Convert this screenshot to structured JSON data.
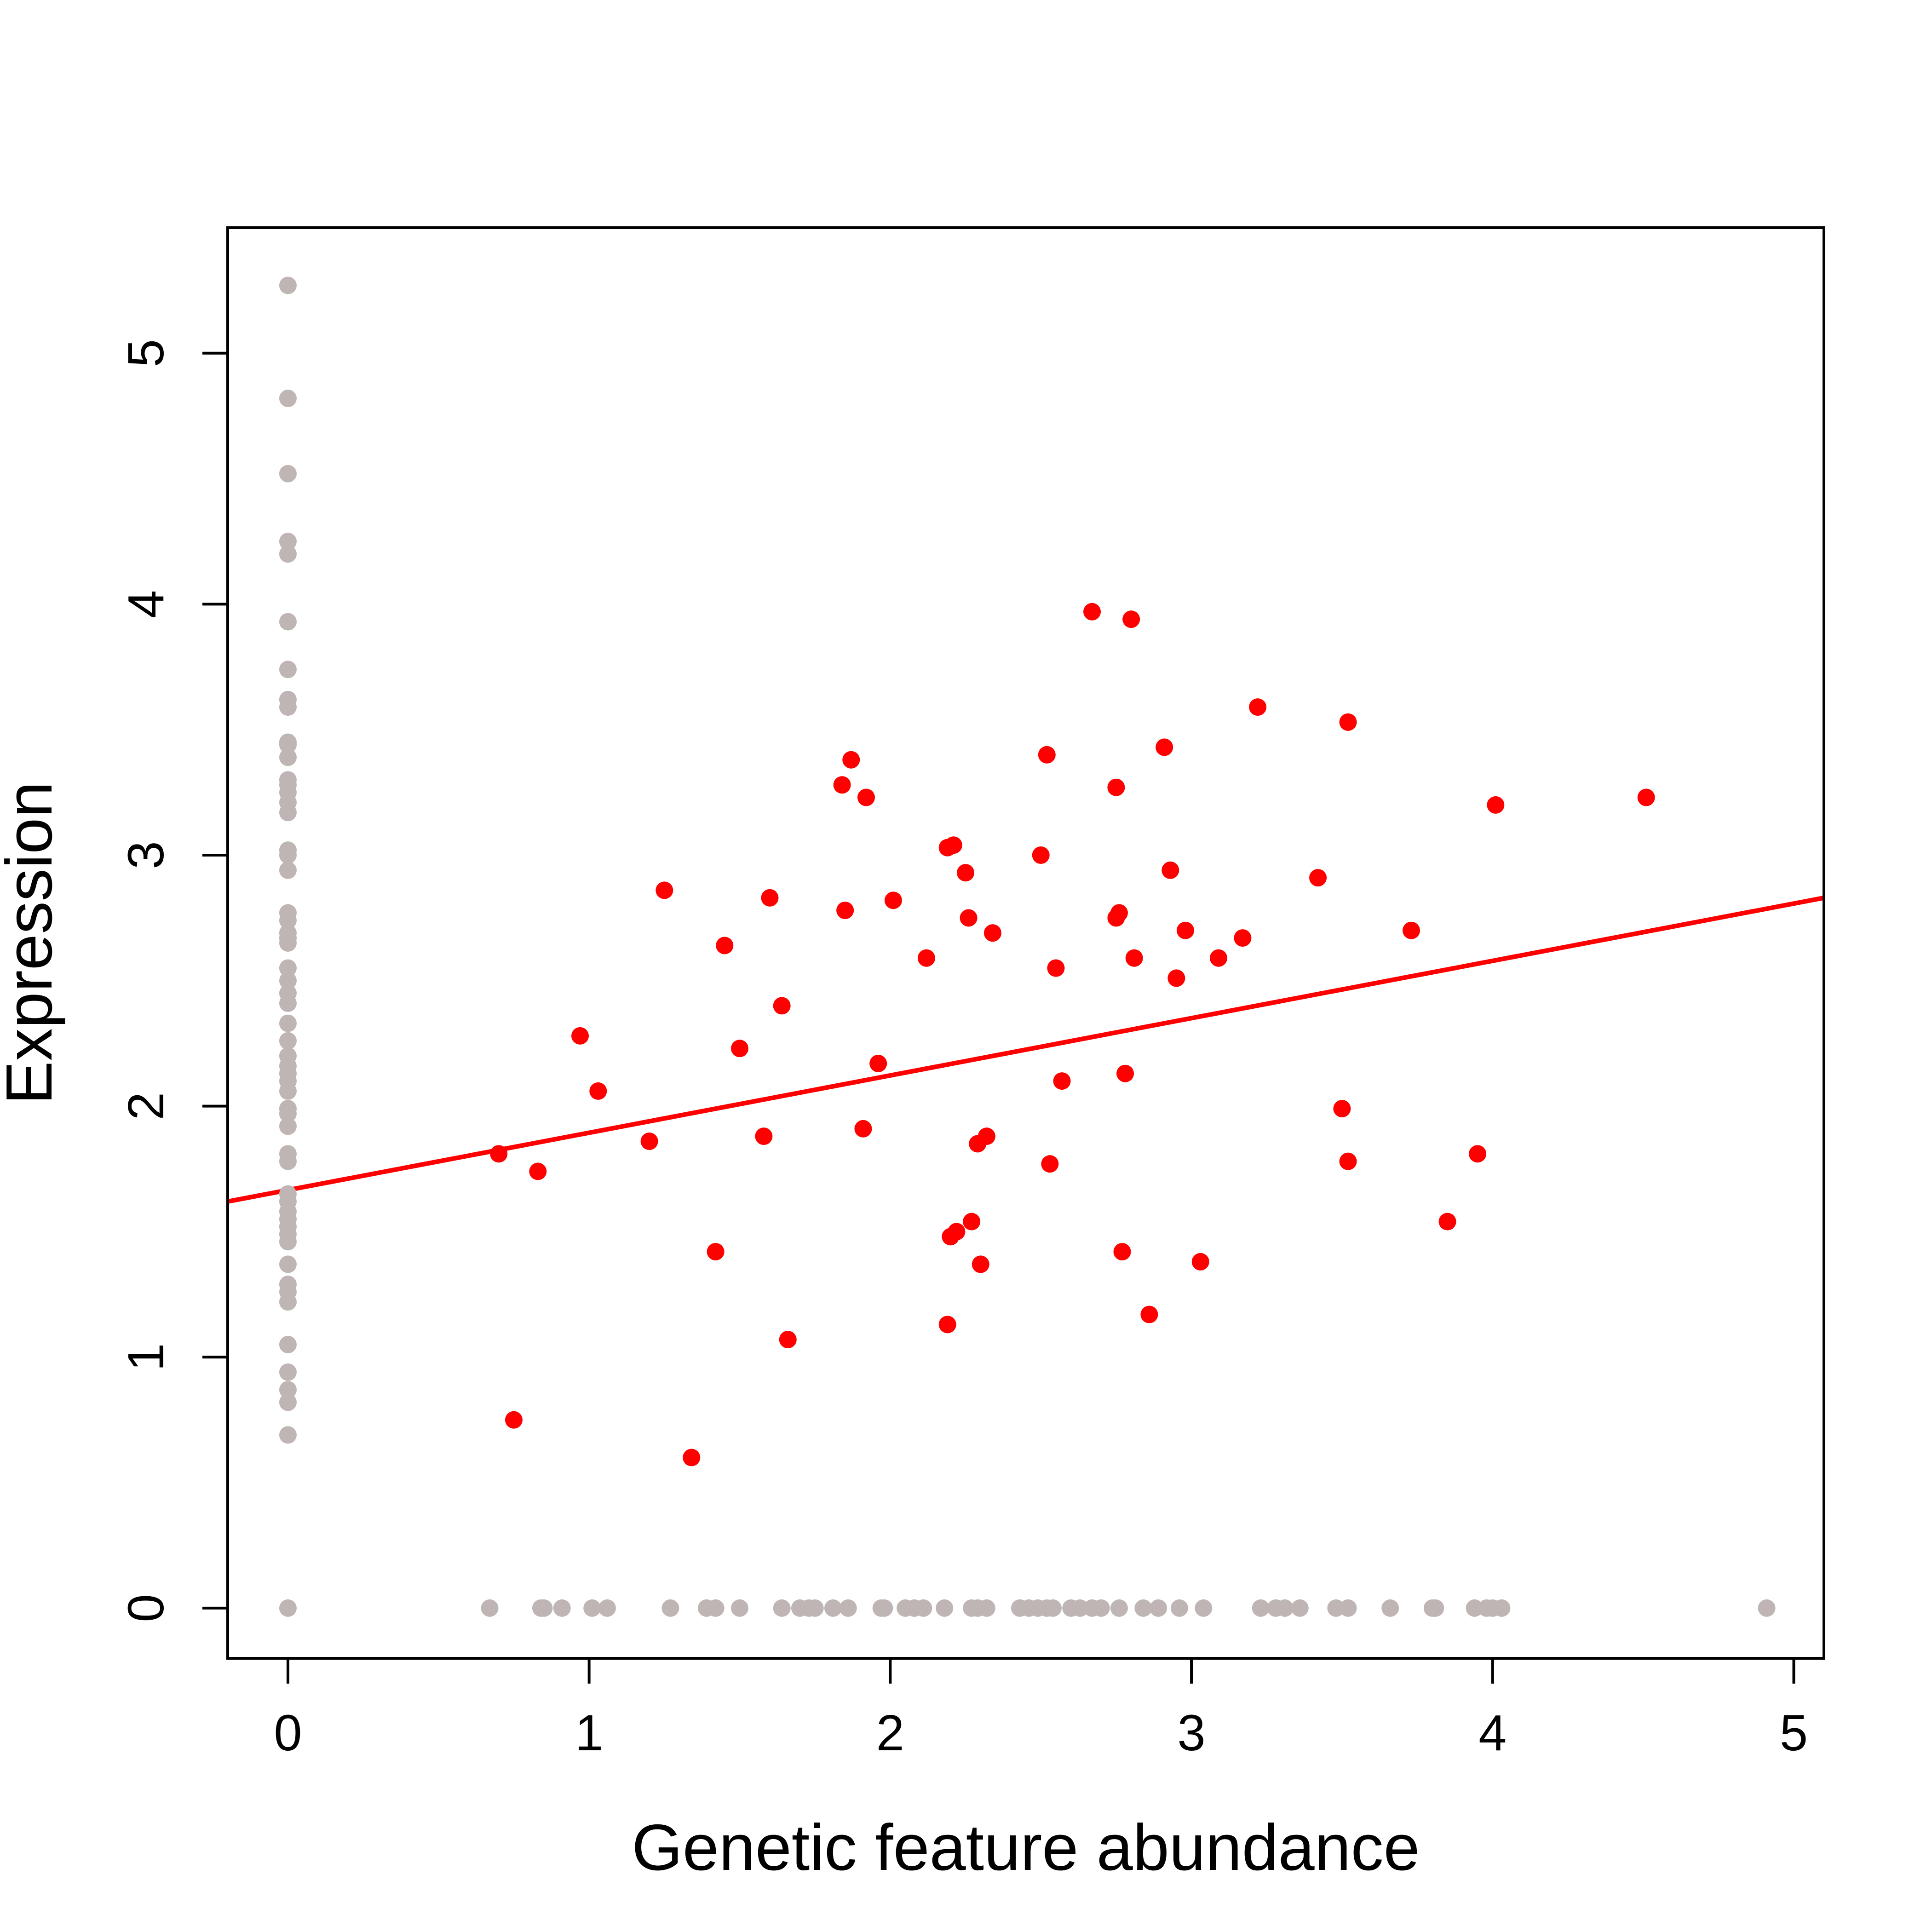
{
  "chart_data": {
    "type": "scatter",
    "title": "",
    "xlabel": "Genetic feature abundance",
    "ylabel": "Expression",
    "xlim": [
      -0.2,
      5.1
    ],
    "ylim": [
      -0.2,
      5.5
    ],
    "x_ticks": [
      "0",
      "1",
      "2",
      "3",
      "4",
      "5"
    ],
    "y_ticks": [
      "0",
      "1",
      "2",
      "3",
      "4",
      "5"
    ],
    "grid": false,
    "legend": "none",
    "colors": {
      "nonzero": "#ff0000",
      "zero": "#bfb5b4",
      "fit_line": "#ff0000",
      "axes": "#000000"
    },
    "series": [
      {
        "role": "both-nonzero",
        "color": "#ff0000",
        "points": [
          [
            0.7,
            1.81
          ],
          [
            0.75,
            0.75
          ],
          [
            0.83,
            1.74
          ],
          [
            0.97,
            2.28
          ],
          [
            1.03,
            2.06
          ],
          [
            1.2,
            1.86
          ],
          [
            1.25,
            2.86
          ],
          [
            1.34,
            0.6
          ],
          [
            1.42,
            1.42
          ],
          [
            1.45,
            2.64
          ],
          [
            1.5,
            2.23
          ],
          [
            1.58,
            1.88
          ],
          [
            1.6,
            2.83
          ],
          [
            1.64,
            2.4
          ],
          [
            1.66,
            1.07
          ],
          [
            1.84,
            3.28
          ],
          [
            1.85,
            2.78
          ],
          [
            1.87,
            3.38
          ],
          [
            1.91,
            1.91
          ],
          [
            1.92,
            3.23
          ],
          [
            1.96,
            2.17
          ],
          [
            2.01,
            2.82
          ],
          [
            2.12,
            2.59
          ],
          [
            2.19,
            1.13
          ],
          [
            2.19,
            3.03
          ],
          [
            2.2,
            1.48
          ],
          [
            2.21,
            3.04
          ],
          [
            2.22,
            1.5
          ],
          [
            2.25,
            2.93
          ],
          [
            2.26,
            2.75
          ],
          [
            2.27,
            1.54
          ],
          [
            2.29,
            1.85
          ],
          [
            2.3,
            1.37
          ],
          [
            2.32,
            1.88
          ],
          [
            2.34,
            2.69
          ],
          [
            2.5,
            3.0
          ],
          [
            2.52,
            3.4
          ],
          [
            2.53,
            1.77
          ],
          [
            2.55,
            2.55
          ],
          [
            2.57,
            2.1
          ],
          [
            2.67,
            3.97
          ],
          [
            2.75,
            3.27
          ],
          [
            2.75,
            2.75
          ],
          [
            2.76,
            2.77
          ],
          [
            2.77,
            1.42
          ],
          [
            2.78,
            2.13
          ],
          [
            2.8,
            3.94
          ],
          [
            2.81,
            2.59
          ],
          [
            2.86,
            1.17
          ],
          [
            2.91,
            3.43
          ],
          [
            2.93,
            2.94
          ],
          [
            2.95,
            2.51
          ],
          [
            2.98,
            2.7
          ],
          [
            3.03,
            1.38
          ],
          [
            3.09,
            2.59
          ],
          [
            3.17,
            2.67
          ],
          [
            3.22,
            3.59
          ],
          [
            3.42,
            2.91
          ],
          [
            3.5,
            1.99
          ],
          [
            3.52,
            3.53
          ],
          [
            3.52,
            1.78
          ],
          [
            3.73,
            2.7
          ],
          [
            3.85,
            1.54
          ],
          [
            3.95,
            1.81
          ],
          [
            4.01,
            3.2
          ],
          [
            4.51,
            3.23
          ]
        ]
      },
      {
        "role": "feature-zero",
        "color": "#bfb5b4",
        "points": [
          [
            0,
            5.27
          ],
          [
            0,
            4.82
          ],
          [
            0,
            4.52
          ],
          [
            0,
            4.25
          ],
          [
            0,
            4.2
          ],
          [
            0,
            3.93
          ],
          [
            0,
            3.74
          ],
          [
            0,
            3.62
          ],
          [
            0,
            3.59
          ],
          [
            0,
            3.45
          ],
          [
            0,
            3.44
          ],
          [
            0,
            3.39
          ],
          [
            0,
            3.3
          ],
          [
            0,
            3.28
          ],
          [
            0,
            3.25
          ],
          [
            0,
            3.21
          ],
          [
            0,
            3.17
          ],
          [
            0,
            3.02
          ],
          [
            0,
            3.0
          ],
          [
            0,
            2.94
          ],
          [
            0,
            2.77
          ],
          [
            0,
            2.74
          ],
          [
            0,
            2.69
          ],
          [
            0,
            2.67
          ],
          [
            0,
            2.65
          ],
          [
            0,
            2.55
          ],
          [
            0,
            2.5
          ],
          [
            0,
            2.45
          ],
          [
            0,
            2.41
          ],
          [
            0,
            2.33
          ],
          [
            0,
            2.26
          ],
          [
            0,
            2.2
          ],
          [
            0,
            2.16
          ],
          [
            0,
            2.13
          ],
          [
            0,
            2.1
          ],
          [
            0,
            2.06
          ],
          [
            0,
            1.99
          ],
          [
            0,
            1.97
          ],
          [
            0,
            1.92
          ],
          [
            0,
            1.81
          ],
          [
            0,
            1.78
          ],
          [
            0,
            1.65
          ],
          [
            0,
            1.62
          ],
          [
            0,
            1.58
          ],
          [
            0,
            1.55
          ],
          [
            0,
            1.52
          ],
          [
            0,
            1.49
          ],
          [
            0,
            1.46
          ],
          [
            0,
            1.37
          ],
          [
            0,
            1.29
          ],
          [
            0,
            1.26
          ],
          [
            0,
            1.22
          ],
          [
            0,
            1.05
          ],
          [
            0,
            0.94
          ],
          [
            0,
            0.87
          ],
          [
            0,
            0.82
          ],
          [
            0,
            0.69
          ],
          [
            0,
            0
          ]
        ]
      },
      {
        "role": "expression-zero",
        "color": "#bfb5b4",
        "points": [
          [
            0.67,
            0
          ],
          [
            0.84,
            0
          ],
          [
            0.85,
            0
          ],
          [
            0.91,
            0
          ],
          [
            1.01,
            0
          ],
          [
            1.06,
            0
          ],
          [
            1.27,
            0
          ],
          [
            1.39,
            0
          ],
          [
            1.42,
            0
          ],
          [
            1.5,
            0
          ],
          [
            1.64,
            0
          ],
          [
            1.7,
            0
          ],
          [
            1.73,
            0
          ],
          [
            1.75,
            0
          ],
          [
            1.81,
            0
          ],
          [
            1.86,
            0
          ],
          [
            1.97,
            0
          ],
          [
            1.98,
            0
          ],
          [
            2.05,
            0
          ],
          [
            2.08,
            0
          ],
          [
            2.11,
            0
          ],
          [
            2.18,
            0
          ],
          [
            2.27,
            0
          ],
          [
            2.29,
            0
          ],
          [
            2.32,
            0
          ],
          [
            2.43,
            0
          ],
          [
            2.46,
            0
          ],
          [
            2.49,
            0
          ],
          [
            2.52,
            0
          ],
          [
            2.54,
            0
          ],
          [
            2.6,
            0
          ],
          [
            2.63,
            0
          ],
          [
            2.67,
            0
          ],
          [
            2.7,
            0
          ],
          [
            2.76,
            0
          ],
          [
            2.84,
            0
          ],
          [
            2.89,
            0
          ],
          [
            2.96,
            0
          ],
          [
            3.04,
            0
          ],
          [
            3.23,
            0
          ],
          [
            3.28,
            0
          ],
          [
            3.31,
            0
          ],
          [
            3.36,
            0
          ],
          [
            3.48,
            0
          ],
          [
            3.52,
            0
          ],
          [
            3.66,
            0
          ],
          [
            3.8,
            0
          ],
          [
            3.81,
            0
          ],
          [
            3.94,
            0
          ],
          [
            3.98,
            0
          ],
          [
            4.0,
            0
          ],
          [
            4.03,
            0
          ],
          [
            4.91,
            0
          ]
        ]
      }
    ],
    "fit_line": {
      "color": "#ff0000",
      "from": [
        -0.2,
        1.62
      ],
      "to": [
        5.1,
        2.83
      ]
    }
  }
}
